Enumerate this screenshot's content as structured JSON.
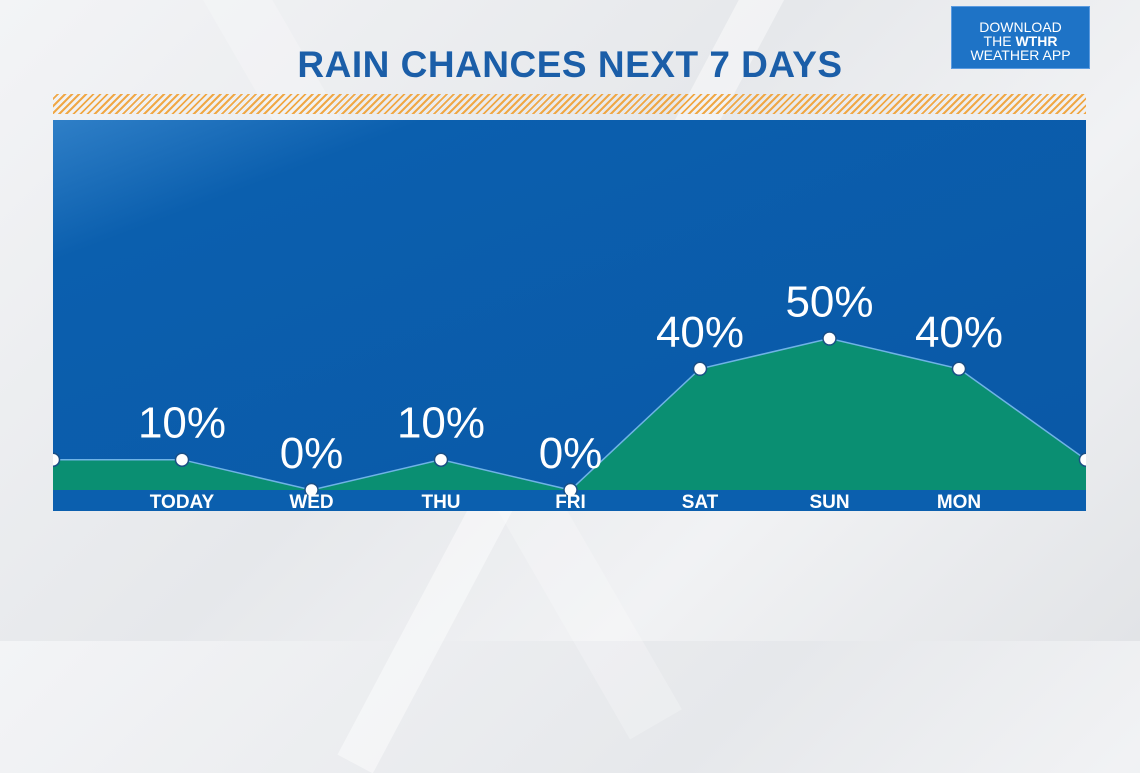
{
  "title": "RAIN CHANCES NEXT 7 DAYS",
  "promo": {
    "line1": "DOWNLOAD",
    "line2_prefix": "THE ",
    "line2_brand": "WTHR",
    "line3": "WEATHER APP"
  },
  "colors": {
    "panel": "#0b5fae",
    "area": "#0a8f72",
    "title": "#1b5ea8",
    "hatch": "#f0a033",
    "promo": "#1e73c6"
  },
  "chart_data": {
    "type": "area",
    "categories": [
      "TODAY",
      "WED",
      "THU",
      "FRI",
      "SAT",
      "SUN",
      "MON"
    ],
    "values": [
      10,
      0,
      10,
      0,
      40,
      50,
      40
    ],
    "value_labels": [
      "10%",
      "0%",
      "10%",
      "0%",
      "40%",
      "50%",
      "40%"
    ],
    "edge_values": [
      10,
      10
    ],
    "ylim": [
      0,
      100
    ],
    "grid": false,
    "legend": "none"
  }
}
